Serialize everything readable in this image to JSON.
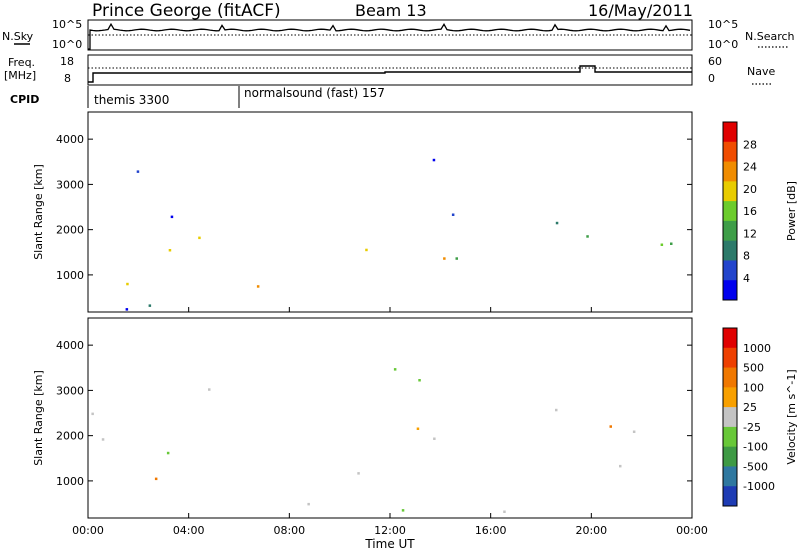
{
  "header": {
    "title": "Prince George (fitACF)",
    "beam": "Beam 13",
    "date": "16/May/2011"
  },
  "noise_panel": {
    "left_label": "N.Sky",
    "right_label": "N.Search",
    "left_ticks": [
      "10^5",
      "10^0"
    ],
    "right_ticks": [
      "10^5",
      "10^0"
    ]
  },
  "freq_panel": {
    "left_label_line1": "Freq.",
    "left_label_line2": "[MHz]",
    "right_label": "Nave",
    "left_ticks": [
      "18",
      "8"
    ],
    "right_ticks": [
      "60",
      "0"
    ]
  },
  "cpid_panel": {
    "label": "CPID",
    "segments": [
      "themis 3300",
      "normalsound (fast) 157"
    ]
  },
  "chart_data": [
    {
      "type": "heatmap",
      "name": "power",
      "ylabel": "Slant Range [km]",
      "y_ticks": [
        1000,
        2000,
        3000,
        4000
      ],
      "ylim": [
        180,
        4600
      ],
      "x_ticks": [
        "00:00",
        "04:00",
        "08:00",
        "12:00",
        "16:00",
        "20:00",
        "00:00"
      ],
      "xlim_hours": [
        0,
        24
      ],
      "colorbar": {
        "label": "Power [dB]",
        "ticks": [
          "28",
          "24",
          "20",
          "16",
          "12",
          "8",
          "4"
        ],
        "colors": [
          "#0000ee",
          "#2244cc",
          "#2c7a6a",
          "#3e9e48",
          "#6ccc2c",
          "#e8cc00",
          "#f08c00",
          "#f04c00",
          "#e00000"
        ]
      }
    },
    {
      "type": "heatmap",
      "name": "velocity",
      "ylabel": "Slant Range [km]",
      "y_ticks": [
        1000,
        2000,
        3000,
        4000
      ],
      "ylim": [
        180,
        4600
      ],
      "x_ticks": [
        "00:00",
        "04:00",
        "08:00",
        "12:00",
        "16:00",
        "20:00",
        "00:00"
      ],
      "xlim_hours": [
        0,
        24
      ],
      "xlabel": "Time UT",
      "colorbar": {
        "label": "Velocity [m s^-1]",
        "ticks": [
          "1000",
          "500",
          "100",
          "25",
          "-25",
          "-100",
          "-500",
          "-1000"
        ],
        "colors": [
          "#1e3cb4",
          "#2f78a0",
          "#3e9a44",
          "#68c838",
          "#c4c4c4",
          "#f8a000",
          "#f07800",
          "#ee4000",
          "#e00000"
        ]
      }
    }
  ]
}
